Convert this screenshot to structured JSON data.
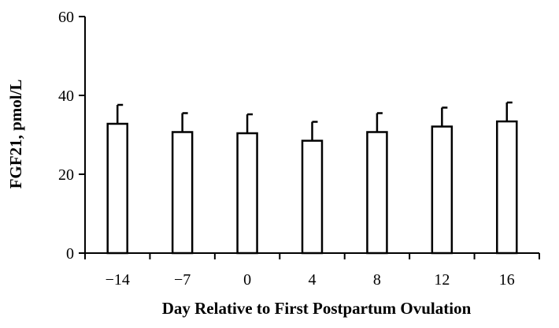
{
  "chart_data": {
    "type": "bar",
    "categories": [
      "−14",
      "−7",
      "0",
      "4",
      "8",
      "12",
      "16"
    ],
    "values": [
      32.8,
      30.7,
      30.4,
      28.5,
      30.7,
      32.1,
      33.4
    ],
    "errors": [
      4.8,
      4.8,
      4.8,
      4.8,
      4.8,
      4.8,
      4.8
    ],
    "xlabel": "Day Relative to First Postpartum Ovulation",
    "ylabel": "FGF21, pmol/L",
    "ylim": [
      0,
      60
    ],
    "yticks": [
      "0",
      "20",
      "40",
      "60"
    ],
    "grid": false,
    "bar_fill": "#ffffff",
    "bar_stroke": "#000000"
  }
}
